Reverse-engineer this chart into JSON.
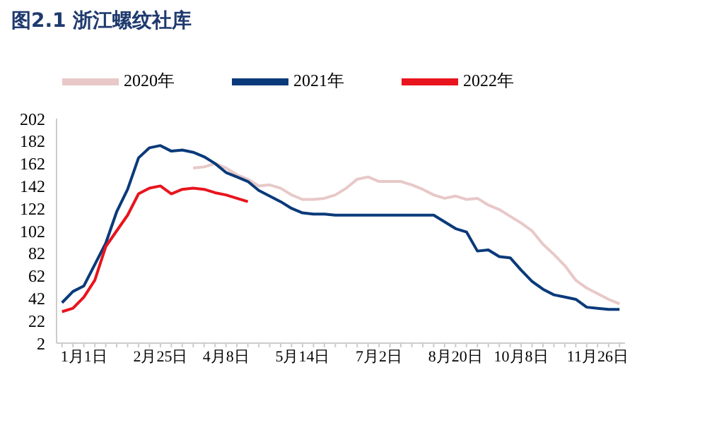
{
  "chart_data": {
    "type": "line",
    "title": "图2.1 浙江螺纹社库",
    "categories": [
      null,
      null,
      "1月1日",
      null,
      null,
      null,
      null,
      null,
      null,
      "2月25日",
      null,
      null,
      null,
      null,
      null,
      "4月8日",
      null,
      null,
      null,
      null,
      null,
      null,
      "5月14日",
      null,
      null,
      null,
      null,
      null,
      null,
      "7月2日",
      null,
      null,
      null,
      null,
      null,
      null,
      "8月20日",
      null,
      null,
      null,
      null,
      null,
      "10月8日",
      null,
      null,
      null,
      null,
      null,
      null,
      "11月26日",
      null,
      null
    ],
    "series": [
      {
        "name": "2020年",
        "color": "#e8c8c8",
        "values": [
          null,
          null,
          null,
          null,
          null,
          null,
          null,
          null,
          null,
          null,
          null,
          null,
          158,
          159,
          162,
          158,
          152,
          148,
          142,
          143,
          140,
          134,
          130,
          130,
          131,
          134,
          140,
          148,
          150,
          146,
          146,
          146,
          143,
          139,
          134,
          131,
          133,
          130,
          131,
          125,
          121,
          115,
          109,
          102,
          90,
          81,
          71,
          58,
          51,
          46,
          41,
          37
        ]
      },
      {
        "name": "2021年",
        "color": "#0a3a7a",
        "values": [
          38,
          48,
          53,
          72,
          91,
          119,
          139,
          167,
          176,
          178,
          173,
          174,
          172,
          168,
          162,
          154,
          150,
          146,
          138,
          133,
          128,
          122,
          118,
          117,
          117,
          116,
          116,
          116,
          116,
          116,
          116,
          116,
          116,
          116,
          116,
          110,
          104,
          101,
          84,
          85,
          79,
          78,
          67,
          57,
          50,
          45,
          43,
          41,
          34,
          33,
          32,
          32
        ]
      },
      {
        "name": "2022年",
        "color": "#e8141e",
        "values": [
          30,
          33,
          43,
          58,
          88,
          102,
          116,
          135,
          140,
          142,
          135,
          139,
          140,
          139,
          136,
          134,
          131,
          128,
          null,
          null,
          null,
          null,
          null,
          null,
          null,
          null,
          null,
          null,
          null,
          null,
          null,
          null,
          null,
          null,
          null,
          null,
          null,
          null,
          null,
          null,
          null,
          null,
          null,
          null,
          null,
          null,
          null,
          null,
          null,
          null,
          null,
          null
        ]
      }
    ],
    "ylim": [
      2,
      202
    ],
    "yticks": [
      2,
      22,
      42,
      62,
      82,
      102,
      122,
      142,
      162,
      182,
      202
    ],
    "grid": false,
    "legend": "top",
    "marker": "none",
    "line_style": "solid"
  }
}
